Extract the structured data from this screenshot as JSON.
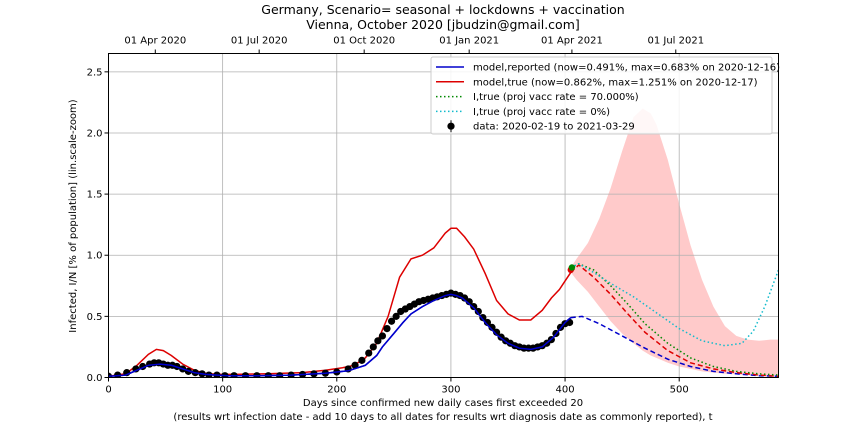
{
  "chart_data": {
    "type": "line",
    "title": "Germany, Scenario= seasonal + lockdowns + vaccination",
    "subtitle": "Vienna, October 2020 [jbudzin@gmail.com]",
    "xlabel": "Days since confirmed new daily cases first exceeded 20",
    "xlabel2": "(results wrt infection date - add 10 days to all dates for results wrt diagnosis date as commonly reported), t",
    "ylabel": "Infected, I/N [% of population] (lin.scale-zoom)",
    "xlim": [
      0,
      587
    ],
    "ylim": [
      0,
      2.65
    ],
    "x_ticks": [
      0,
      100,
      200,
      300,
      400,
      500
    ],
    "y_ticks": [
      0.0,
      0.5,
      1.0,
      1.5,
      2.0,
      2.5
    ],
    "x_tick_labels": [
      "0",
      "100",
      "200",
      "300",
      "400",
      "500"
    ],
    "y_tick_labels": [
      "0.0",
      "0.5",
      "1.0",
      "1.5",
      "2.0",
      "2.5"
    ],
    "top_axis": {
      "ticks": [
        41,
        132,
        224,
        316,
        406,
        497
      ],
      "labels": [
        "01 Apr 2020",
        "01 Jul 2020",
        "01 Oct 2020",
        "01 Jan 2021",
        "01 Apr 2021",
        "01 Jul 2021"
      ]
    },
    "grid": true,
    "legend_position": "top-right",
    "series": [
      {
        "name": "model,reported (now=0.491%, max=0.683% on 2020-12-16)",
        "color": "#0000cc",
        "style": "solid",
        "x": [
          0,
          15,
          25,
          35,
          45,
          55,
          65,
          75,
          85,
          95,
          105,
          130,
          160,
          190,
          210,
          225,
          235,
          240,
          250,
          258,
          265,
          275,
          285,
          295,
          300,
          305,
          310,
          320,
          330,
          340,
          350,
          360,
          370,
          380,
          390,
          400,
          405
        ],
        "y": [
          0.01,
          0.02,
          0.06,
          0.1,
          0.11,
          0.1,
          0.07,
          0.04,
          0.025,
          0.02,
          0.015,
          0.015,
          0.02,
          0.035,
          0.055,
          0.1,
          0.18,
          0.25,
          0.36,
          0.45,
          0.52,
          0.58,
          0.63,
          0.67,
          0.68,
          0.67,
          0.65,
          0.57,
          0.45,
          0.35,
          0.28,
          0.24,
          0.23,
          0.25,
          0.33,
          0.45,
          0.49
        ]
      },
      {
        "name": "model,reported projection",
        "color": "#0000cc",
        "style": "dashed",
        "x": [
          405,
          415,
          430,
          450,
          470,
          490,
          510,
          530,
          550,
          570,
          587
        ],
        "y": [
          0.49,
          0.5,
          0.44,
          0.34,
          0.24,
          0.15,
          0.09,
          0.05,
          0.03,
          0.015,
          0.01
        ]
      },
      {
        "name": "model,true (now=0.862%, max=1.251% on 2020-12-17)",
        "color": "#dd0000",
        "style": "solid",
        "x": [
          0,
          15,
          25,
          35,
          42,
          48,
          55,
          65,
          75,
          85,
          95,
          110,
          140,
          170,
          190,
          205,
          215,
          225,
          235,
          245,
          255,
          265,
          275,
          285,
          295,
          300,
          305,
          312,
          320,
          330,
          340,
          350,
          360,
          370,
          380,
          388,
          395,
          400,
          405
        ],
        "y": [
          0.01,
          0.03,
          0.1,
          0.19,
          0.23,
          0.22,
          0.18,
          0.11,
          0.06,
          0.035,
          0.025,
          0.025,
          0.03,
          0.04,
          0.06,
          0.08,
          0.1,
          0.16,
          0.28,
          0.5,
          0.82,
          0.97,
          1.0,
          1.06,
          1.18,
          1.22,
          1.22,
          1.15,
          1.05,
          0.85,
          0.63,
          0.52,
          0.47,
          0.47,
          0.55,
          0.65,
          0.72,
          0.79,
          0.86
        ]
      },
      {
        "name": "model,true projection",
        "color": "#dd0000",
        "style": "dashed",
        "x": [
          405,
          412,
          425,
          440,
          455,
          470,
          490,
          510,
          530,
          550,
          570,
          587
        ],
        "y": [
          0.86,
          0.92,
          0.82,
          0.68,
          0.52,
          0.37,
          0.22,
          0.12,
          0.07,
          0.04,
          0.02,
          0.01
        ]
      },
      {
        "name": "I,true (proj vacc rate = 70.000%)",
        "color": "#008800",
        "style": "dotted",
        "x": [
          405,
          412,
          425,
          440,
          455,
          470,
          490,
          510,
          530,
          550,
          570,
          587
        ],
        "y": [
          0.9,
          0.93,
          0.88,
          0.75,
          0.6,
          0.44,
          0.28,
          0.16,
          0.09,
          0.05,
          0.03,
          0.02
        ]
      },
      {
        "name": "I,true (proj vacc rate = 0%)",
        "color": "#11bbcc",
        "style": "dotted",
        "x": [
          405,
          412,
          425,
          440,
          460,
          480,
          500,
          520,
          540,
          555,
          565,
          575,
          587
        ],
        "y": [
          0.9,
          0.93,
          0.86,
          0.77,
          0.66,
          0.53,
          0.4,
          0.3,
          0.26,
          0.28,
          0.38,
          0.58,
          0.88
        ]
      },
      {
        "name": "data: 2020-02-19 to 2021-03-29",
        "color": "#000000",
        "style": "markers",
        "x": [
          0,
          8,
          16,
          24,
          30,
          36,
          40,
          44,
          48,
          52,
          56,
          60,
          65,
          70,
          76,
          82,
          88,
          95,
          102,
          110,
          120,
          130,
          140,
          150,
          160,
          170,
          180,
          190,
          200,
          210,
          216,
          222,
          228,
          232,
          236,
          240,
          244,
          248,
          252,
          256,
          260,
          264,
          268,
          272,
          276,
          280,
          284,
          288,
          292,
          296,
          300,
          304,
          308,
          312,
          316,
          320,
          324,
          328,
          332,
          336,
          340,
          344,
          348,
          352,
          356,
          360,
          364,
          368,
          372,
          376,
          380,
          384,
          388,
          392,
          396,
          400,
          404
        ],
        "y": [
          0.01,
          0.02,
          0.04,
          0.07,
          0.09,
          0.11,
          0.12,
          0.12,
          0.11,
          0.1,
          0.1,
          0.09,
          0.07,
          0.05,
          0.04,
          0.03,
          0.02,
          0.02,
          0.015,
          0.015,
          0.015,
          0.015,
          0.015,
          0.015,
          0.02,
          0.025,
          0.03,
          0.035,
          0.045,
          0.07,
          0.1,
          0.14,
          0.2,
          0.25,
          0.3,
          0.34,
          0.4,
          0.46,
          0.5,
          0.54,
          0.56,
          0.58,
          0.6,
          0.62,
          0.63,
          0.64,
          0.65,
          0.66,
          0.67,
          0.68,
          0.69,
          0.68,
          0.67,
          0.65,
          0.62,
          0.58,
          0.54,
          0.49,
          0.45,
          0.41,
          0.37,
          0.33,
          0.3,
          0.28,
          0.26,
          0.25,
          0.24,
          0.24,
          0.24,
          0.25,
          0.26,
          0.28,
          0.31,
          0.36,
          0.41,
          0.44,
          0.45
        ]
      }
    ],
    "marker_points": [
      {
        "name": "true-now-red",
        "x": 405,
        "y": 0.88,
        "color": "#dd0000"
      },
      {
        "name": "true-now-green",
        "x": 406,
        "y": 0.9,
        "color": "#008800"
      }
    ],
    "uncertainty_band": {
      "color": "#ffb3b3",
      "x": [
        405,
        410,
        420,
        430,
        440,
        450,
        460,
        468,
        475,
        480,
        490,
        500,
        510,
        520,
        530,
        540,
        550,
        560,
        570,
        580,
        587
      ],
      "upper": [
        0.9,
        0.97,
        1.1,
        1.3,
        1.55,
        1.85,
        2.13,
        2.2,
        2.16,
        2.07,
        1.78,
        1.42,
        1.08,
        0.8,
        0.58,
        0.42,
        0.34,
        0.31,
        0.3,
        0.31,
        0.31
      ],
      "lower": [
        0.86,
        0.8,
        0.7,
        0.58,
        0.46,
        0.36,
        0.28,
        0.22,
        0.18,
        0.16,
        0.12,
        0.09,
        0.07,
        0.05,
        0.04,
        0.03,
        0.025,
        0.02,
        0.02,
        0.02,
        0.02
      ]
    }
  }
}
